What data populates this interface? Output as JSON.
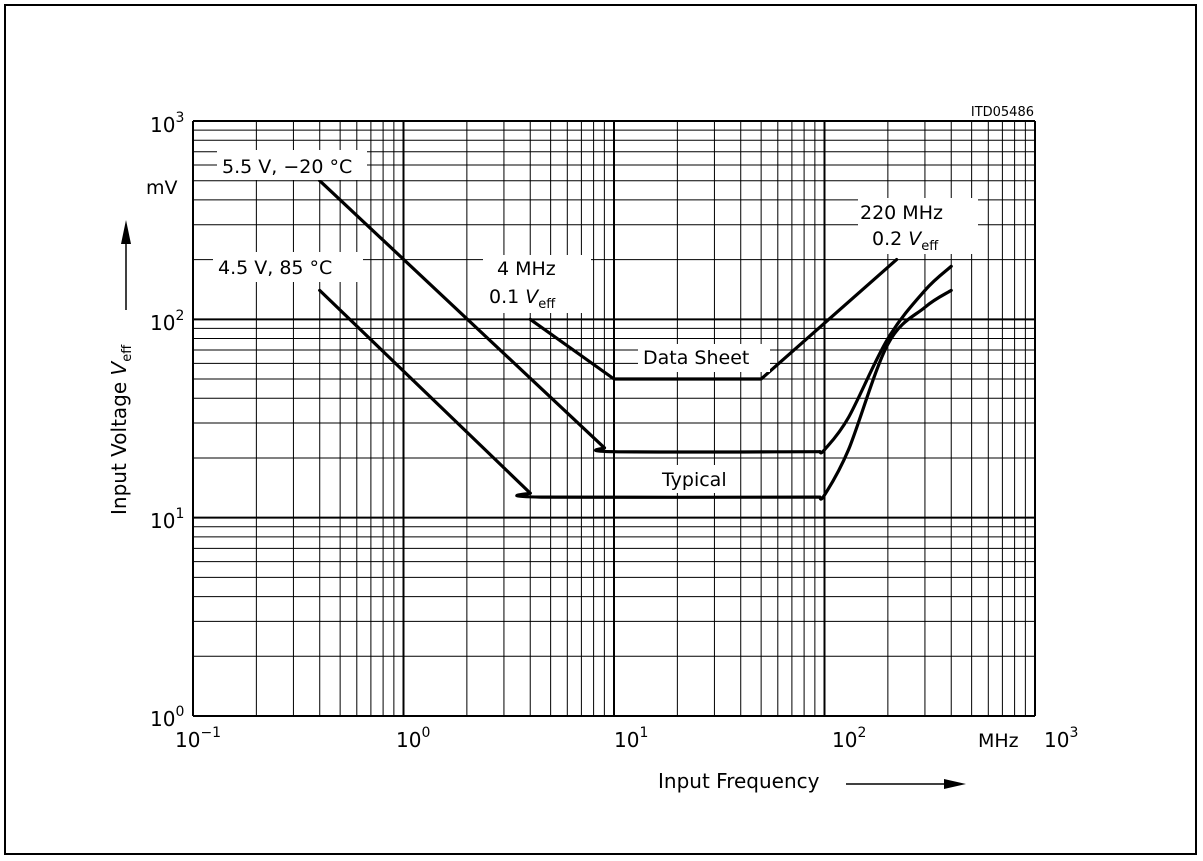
{
  "chart_data": {
    "type": "line",
    "figure_id": "ITD05486",
    "xlabel": "Input Frequency",
    "xunit": "MHz",
    "ylabel_prefix": "Input Voltage ",
    "ylabel_symbol": "V",
    "ylabel_sub": "eff",
    "yunit": "mV",
    "x_scale": "log",
    "y_scale": "log",
    "xlim": [
      0.1,
      1000
    ],
    "ylim": [
      1,
      1000
    ],
    "grid": true,
    "x_ticks": [
      {
        "base": "10",
        "exp": "−1"
      },
      {
        "base": "10",
        "exp": "0"
      },
      {
        "base": "10",
        "exp": "1"
      },
      {
        "base": "10",
        "exp": "2"
      },
      {
        "base": "10",
        "exp": "3"
      }
    ],
    "y_ticks": [
      {
        "base": "10",
        "exp": "0"
      },
      {
        "base": "10",
        "exp": "1"
      },
      {
        "base": "10",
        "exp": "2"
      },
      {
        "base": "10",
        "exp": "3"
      }
    ],
    "series": [
      {
        "name": "5.5 V, −20 °C",
        "x": [
          0.4,
          9,
          10,
          95,
          100,
          400
        ],
        "y": [
          500,
          22.5,
          21.5,
          21.5,
          22,
          185
        ]
      },
      {
        "name": "4.5 V, 85 °C",
        "x": [
          0.4,
          4,
          4.5,
          95,
          100,
          400
        ],
        "y": [
          140,
          13.3,
          12.7,
          12.7,
          13,
          140
        ]
      },
      {
        "name": "Data Sheet",
        "x": [
          4,
          10,
          50,
          220
        ],
        "y": [
          100,
          50,
          50,
          200
        ]
      }
    ],
    "annotations": {
      "label_5v5": "5.5 V, −20 °C",
      "label_4v5": "4.5 V, 85 °C",
      "data_sheet": "Data Sheet",
      "typical": "Typical",
      "mhz4_line1": "4 MHz",
      "mhz4_line2_prefix": "0.1 ",
      "mhz4_sym": "V",
      "mhz4_sub": "eff",
      "mhz220_line1": "220 MHz",
      "mhz220_line2_prefix": "0.2 ",
      "mhz220_sym": "V",
      "mhz220_sub": "eff"
    }
  }
}
